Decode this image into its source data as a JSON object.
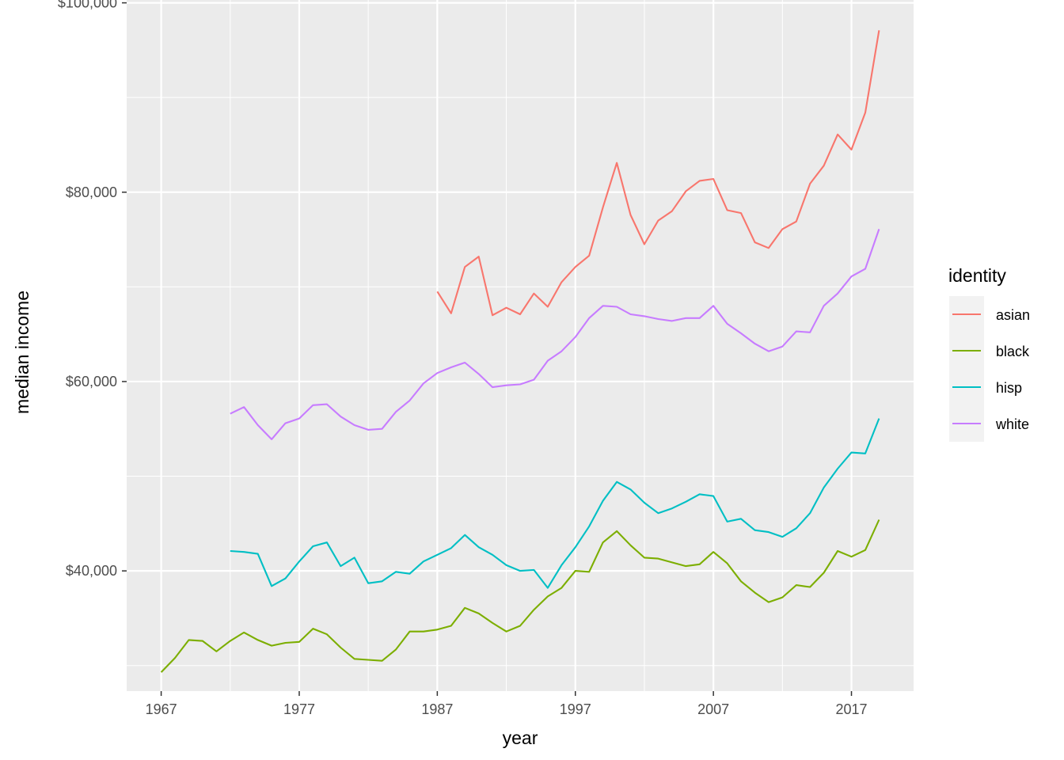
{
  "chart_data": {
    "type": "line",
    "title": "",
    "xlabel": "year",
    "ylabel": "median income",
    "xlim": [
      1964.5,
      2021.5
    ],
    "ylim": [
      27300,
      100300
    ],
    "x_ticks": [
      1967,
      1977,
      1987,
      1997,
      2007,
      2017
    ],
    "y_ticks": [
      40000,
      60000,
      80000,
      100000
    ],
    "y_tick_labels": [
      "$40,000",
      "$60,000",
      "$80,000",
      "$100,000"
    ],
    "y_minor_ticks": [
      30000,
      50000,
      70000,
      90000
    ],
    "x_minor_ticks": [
      1972,
      1982,
      1992,
      2002,
      2012
    ],
    "grid": true,
    "legend": {
      "title": "identity",
      "position": "right"
    },
    "series": [
      {
        "name": "asian",
        "color": "#F8766D",
        "x": [
          1987,
          1988,
          1989,
          1990,
          1991,
          1992,
          1993,
          1994,
          1995,
          1996,
          1997,
          1998,
          1999,
          2000,
          2001,
          2002,
          2003,
          2004,
          2005,
          2006,
          2007,
          2008,
          2009,
          2010,
          2011,
          2012,
          2013,
          2014,
          2015,
          2016,
          2017,
          2018,
          2019
        ],
        "y": [
          69500,
          67200,
          72100,
          73200,
          67000,
          67800,
          67100,
          69300,
          67900,
          70500,
          72100,
          73300,
          78400,
          83100,
          77600,
          74500,
          77000,
          78000,
          80100,
          81200,
          81400,
          78100,
          77800,
          74700,
          74100,
          76100,
          76900,
          80900,
          82800,
          86100,
          84500,
          88400,
          97100
        ]
      },
      {
        "name": "black",
        "color": "#7CAE00",
        "x": [
          1967,
          1968,
          1969,
          1970,
          1971,
          1972,
          1973,
          1974,
          1975,
          1976,
          1977,
          1978,
          1979,
          1980,
          1981,
          1982,
          1983,
          1984,
          1985,
          1986,
          1987,
          1988,
          1989,
          1990,
          1991,
          1992,
          1993,
          1994,
          1995,
          1996,
          1997,
          1998,
          1999,
          2000,
          2001,
          2002,
          2003,
          2004,
          2005,
          2006,
          2007,
          2008,
          2009,
          2010,
          2011,
          2012,
          2013,
          2014,
          2015,
          2016,
          2017,
          2018,
          2019
        ],
        "y": [
          29300,
          30800,
          32700,
          32600,
          31500,
          32600,
          33500,
          32700,
          32100,
          32400,
          32500,
          33900,
          33300,
          31900,
          30700,
          30600,
          30500,
          31700,
          33600,
          33600,
          33800,
          34200,
          36100,
          35500,
          34500,
          33600,
          34200,
          35900,
          37300,
          38200,
          40000,
          39900,
          43000,
          44200,
          42700,
          41400,
          41300,
          40900,
          40500,
          40700,
          42000,
          40800,
          38900,
          37700,
          36700,
          37200,
          38500,
          38300,
          39800,
          42100,
          41500,
          42200,
          45400
        ]
      },
      {
        "name": "hisp",
        "color": "#00BFC4",
        "x": [
          1972,
          1973,
          1974,
          1975,
          1976,
          1977,
          1978,
          1979,
          1980,
          1981,
          1982,
          1983,
          1984,
          1985,
          1986,
          1987,
          1988,
          1989,
          1990,
          1991,
          1992,
          1993,
          1994,
          1995,
          1996,
          1997,
          1998,
          1999,
          2000,
          2001,
          2002,
          2003,
          2004,
          2005,
          2006,
          2007,
          2008,
          2009,
          2010,
          2011,
          2012,
          2013,
          2014,
          2015,
          2016,
          2017,
          2018,
          2019
        ],
        "y": [
          42100,
          42000,
          41800,
          38400,
          39200,
          41000,
          42600,
          43000,
          40500,
          41400,
          38700,
          38900,
          39900,
          39700,
          41000,
          41700,
          42400,
          43800,
          42500,
          41700,
          40600,
          40000,
          40100,
          38200,
          40600,
          42500,
          44700,
          47400,
          49400,
          48600,
          47200,
          46100,
          46600,
          47300,
          48100,
          47900,
          45200,
          45500,
          44300,
          44100,
          43600,
          44500,
          46100,
          48800,
          50800,
          52500,
          52400,
          56100
        ]
      },
      {
        "name": "white",
        "color": "#C77CFF",
        "x": [
          1972,
          1973,
          1974,
          1975,
          1976,
          1977,
          1978,
          1979,
          1980,
          1981,
          1982,
          1983,
          1984,
          1985,
          1986,
          1987,
          1988,
          1989,
          1990,
          1991,
          1992,
          1993,
          1994,
          1995,
          1996,
          1997,
          1998,
          1999,
          2000,
          2001,
          2002,
          2003,
          2004,
          2005,
          2006,
          2007,
          2008,
          2009,
          2010,
          2011,
          2012,
          2013,
          2014,
          2015,
          2016,
          2017,
          2018,
          2019
        ],
        "y": [
          56600,
          57300,
          55400,
          53900,
          55600,
          56100,
          57500,
          57600,
          56300,
          55400,
          54900,
          55000,
          56800,
          58000,
          59800,
          60900,
          61500,
          62000,
          60800,
          59400,
          59600,
          59700,
          60200,
          62200,
          63200,
          64700,
          66700,
          68000,
          67900,
          67100,
          66900,
          66600,
          66400,
          66700,
          66700,
          68000,
          66100,
          65100,
          64000,
          63200,
          63700,
          65300,
          65200,
          68000,
          69300,
          71100,
          71900,
          76100
        ]
      }
    ]
  }
}
